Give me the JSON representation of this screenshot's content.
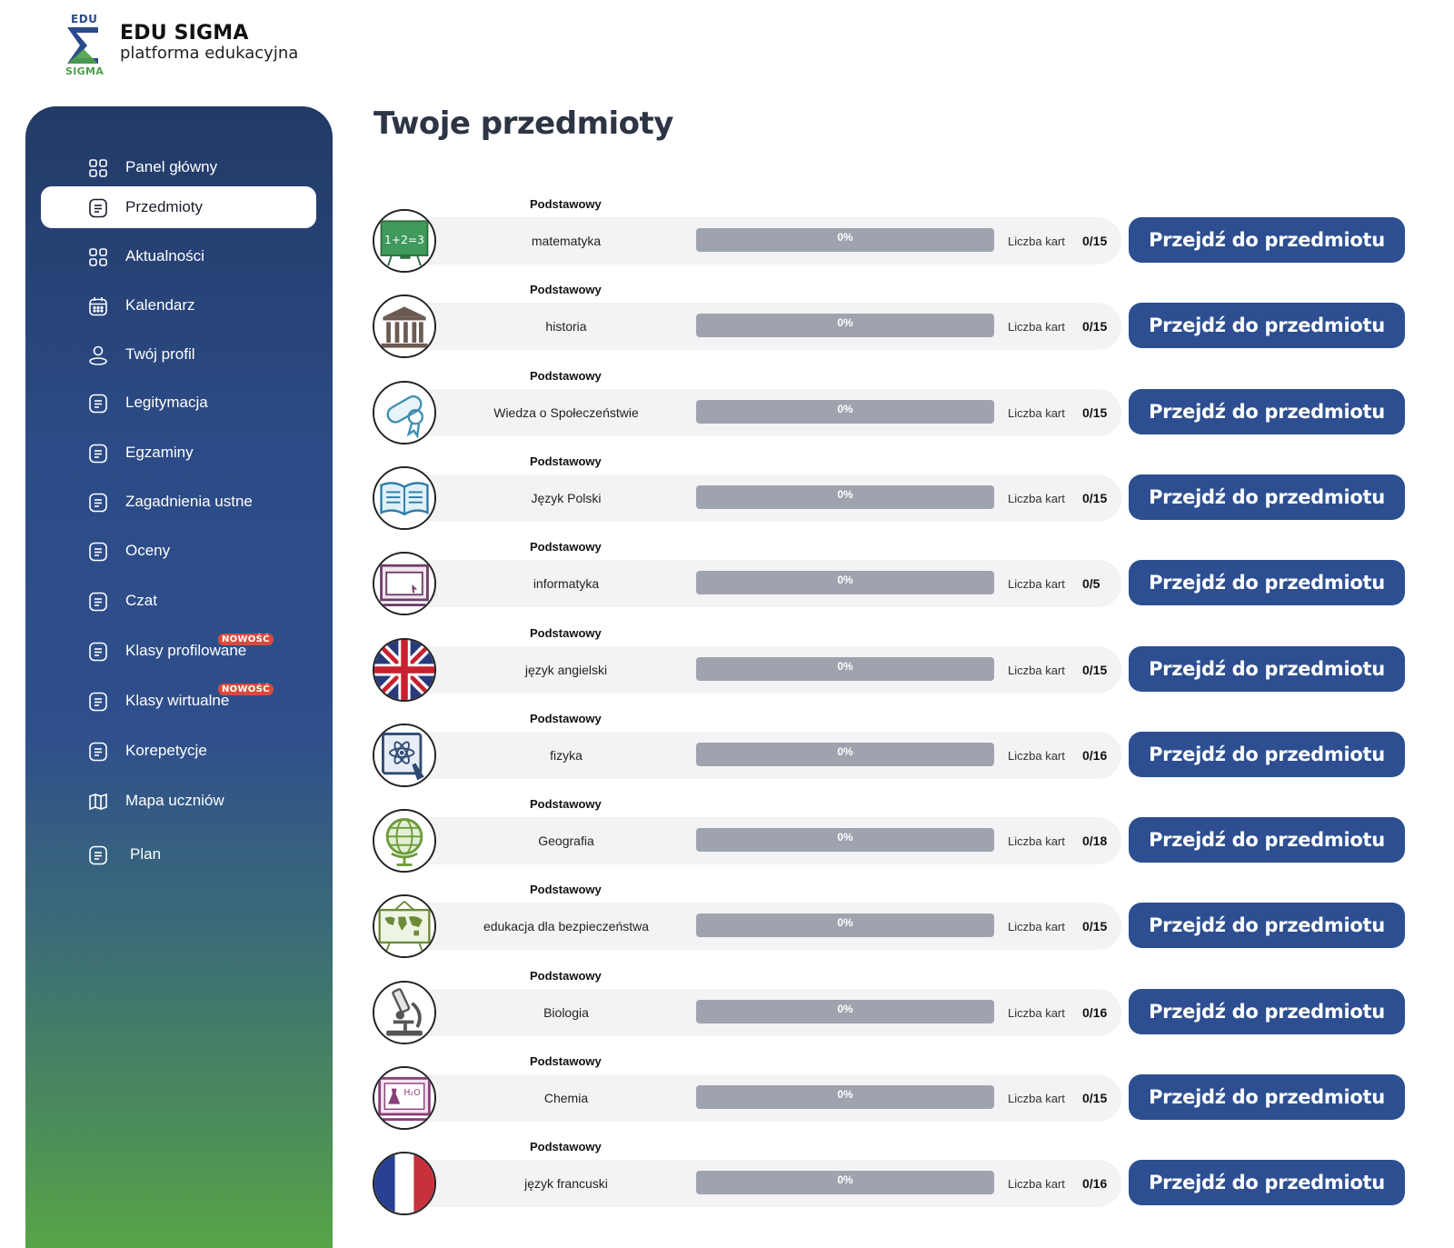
{
  "brand": {
    "logo_top": "EDU",
    "logo_bottom": "SIGMA",
    "title": "EDU SIGMA",
    "subtitle": "platforma edukacyjna"
  },
  "sidebar": {
    "items": [
      {
        "label": "Panel główny",
        "icon": "grid-icon",
        "active": false
      },
      {
        "label": "Przedmioty",
        "icon": "document-icon",
        "active": true
      },
      {
        "label": "Aktualności",
        "icon": "grid-icon",
        "active": false
      },
      {
        "label": "Kalendarz",
        "icon": "calendar-icon",
        "active": false
      },
      {
        "label": "Twój profil",
        "icon": "user-icon",
        "active": false
      },
      {
        "label": "Legitymacja",
        "icon": "document-icon",
        "active": false
      },
      {
        "label": "Egzaminy",
        "icon": "document-icon",
        "active": false
      },
      {
        "label": "Zagadnienia ustne",
        "icon": "document-icon",
        "active": false
      },
      {
        "label": "Oceny",
        "icon": "document-icon",
        "active": false
      },
      {
        "label": "Czat",
        "icon": "document-icon",
        "active": false
      },
      {
        "label": "Klasy profilowane",
        "icon": "document-icon",
        "active": false,
        "badge": "NOWOŚĆ"
      },
      {
        "label": "Klasy wirtualne",
        "icon": "document-icon",
        "active": false,
        "badge": "NOWOŚĆ"
      },
      {
        "label": "Korepetycje",
        "icon": "document-icon",
        "active": false
      },
      {
        "label": "Mapa uczniów",
        "icon": "map-icon",
        "active": false
      },
      {
        "label": "Plan",
        "icon": "document-icon",
        "active": false
      }
    ]
  },
  "main": {
    "title": "Twoje przedmioty",
    "cards_label": "Liczba kart",
    "button_label": "Przejdź do przedmiotu",
    "subjects": [
      {
        "level": "Podstawowy",
        "name": "matematyka",
        "progress": "0%",
        "progress_value": 0,
        "cards": "0/15",
        "icon": "math-board-icon"
      },
      {
        "level": "Podstawowy",
        "name": "historia",
        "progress": "0%",
        "progress_value": 0,
        "cards": "0/15",
        "icon": "museum-columns-icon"
      },
      {
        "level": "Podstawowy",
        "name": "Wiedza o Społeczeństwie",
        "progress": "0%",
        "progress_value": 0,
        "cards": "0/15",
        "icon": "diploma-scroll-icon"
      },
      {
        "level": "Podstawowy",
        "name": "Język Polski",
        "progress": "0%",
        "progress_value": 0,
        "cards": "0/15",
        "icon": "open-book-icon"
      },
      {
        "level": "Podstawowy",
        "name": "informatyka",
        "progress": "0%",
        "progress_value": 0,
        "cards": "0/5",
        "icon": "computer-screen-icon"
      },
      {
        "level": "Podstawowy",
        "name": "język angielski",
        "progress": "0%",
        "progress_value": 0,
        "cards": "0/15",
        "icon": "uk-flag-icon"
      },
      {
        "level": "Podstawowy",
        "name": "fizyka",
        "progress": "0%",
        "progress_value": 0,
        "cards": "0/16",
        "icon": "atom-tablet-icon"
      },
      {
        "level": "Podstawowy",
        "name": "Geografia",
        "progress": "0%",
        "progress_value": 0,
        "cards": "0/18",
        "icon": "globe-icon"
      },
      {
        "level": "Podstawowy",
        "name": "edukacja dla bezpieczeństwa",
        "progress": "0%",
        "progress_value": 0,
        "cards": "0/15",
        "icon": "world-map-board-icon"
      },
      {
        "level": "Podstawowy",
        "name": "Biologia",
        "progress": "0%",
        "progress_value": 0,
        "cards": "0/16",
        "icon": "microscope-icon"
      },
      {
        "level": "Podstawowy",
        "name": "Chemia",
        "progress": "0%",
        "progress_value": 0,
        "cards": "0/15",
        "icon": "chemistry-board-icon"
      },
      {
        "level": "Podstawowy",
        "name": "język francuski",
        "progress": "0%",
        "progress_value": 0,
        "cards": "0/16",
        "icon": "france-flag-icon"
      }
    ]
  },
  "colors": {
    "primary": "#2d4f91",
    "sidebar_top": "#223a66",
    "sidebar_bottom": "#57a547",
    "badge": "#d94a3b",
    "progress_track": "#9ea3ad",
    "row_bg": "#f3f3f5"
  }
}
